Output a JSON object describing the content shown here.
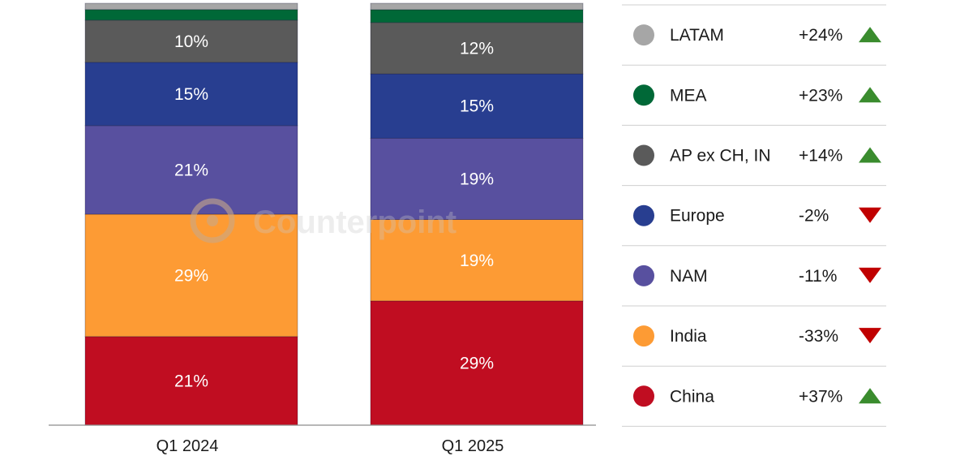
{
  "chart_data": {
    "type": "bar",
    "stacked": true,
    "normalized_percent": true,
    "categories": [
      "Q1 2024",
      "Q1 2025"
    ],
    "series": [
      {
        "name": "China",
        "color": "#c00d21",
        "values": [
          21,
          29
        ],
        "labels": [
          "21%",
          "29%"
        ],
        "change": "+37%",
        "trend": "up"
      },
      {
        "name": "India",
        "color": "#fd9b34",
        "values": [
          29,
          19
        ],
        "labels": [
          "29%",
          "19%"
        ],
        "change": "-33%",
        "trend": "down"
      },
      {
        "name": "NAM",
        "color": "#58509f",
        "values": [
          21,
          19
        ],
        "labels": [
          "21%",
          "19%"
        ],
        "change": "-11%",
        "trend": "down"
      },
      {
        "name": "Europe",
        "color": "#283e90",
        "values": [
          15,
          15
        ],
        "labels": [
          "15%",
          "15%"
        ],
        "change": "-2%",
        "trend": "down"
      },
      {
        "name": "AP ex CH, IN",
        "color": "#5a5a5a",
        "values": [
          10,
          12
        ],
        "labels": [
          "10%",
          "12%"
        ],
        "change": "+14%",
        "trend": "up"
      },
      {
        "name": "MEA",
        "color": "#006837",
        "values": [
          2.5,
          3
        ],
        "labels": [
          "",
          ""
        ],
        "change": "+23%",
        "trend": "up"
      },
      {
        "name": "LATAM",
        "color": "#a6a6a6",
        "values": [
          1.5,
          1.5
        ],
        "labels": [
          "",
          ""
        ],
        "change": "+24%",
        "trend": "up"
      }
    ],
    "legend_order": [
      "LATAM",
      "MEA",
      "AP ex CH, IN",
      "Europe",
      "NAM",
      "India",
      "China"
    ],
    "legend_position": "right",
    "trend_colors": {
      "up": "#3a8c2e",
      "down": "#c00000"
    },
    "watermark": "Counterpoint",
    "grid": false
  }
}
